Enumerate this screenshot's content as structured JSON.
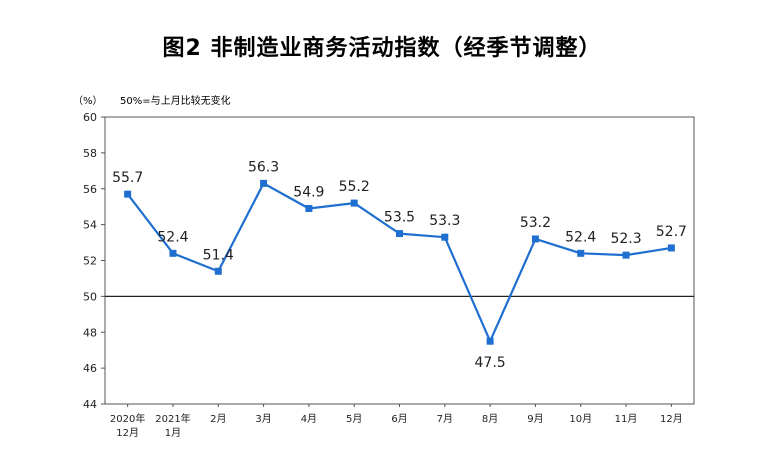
{
  "chart_data": {
    "type": "line",
    "title": "图2  非制造业商务活动指数（经季节调整）",
    "unit_label": "（%）",
    "note": "50%=与上月比较无变化",
    "categories": [
      [
        "2020年",
        "12月"
      ],
      [
        "2021年",
        "1月"
      ],
      [
        "2月"
      ],
      [
        "3月"
      ],
      [
        "4月"
      ],
      [
        "5月"
      ],
      [
        "6月"
      ],
      [
        "7月"
      ],
      [
        "8月"
      ],
      [
        "9月"
      ],
      [
        "10月"
      ],
      [
        "11月"
      ],
      [
        "12月"
      ]
    ],
    "values": [
      55.7,
      52.4,
      51.4,
      56.3,
      54.9,
      55.2,
      53.5,
      53.3,
      47.5,
      53.2,
      52.4,
      52.3,
      52.7
    ],
    "value_labels": [
      "55.7",
      "52.4",
      "51.4",
      "56.3",
      "54.9",
      "55.2",
      "53.5",
      "53.3",
      "47.5",
      "53.2",
      "52.4",
      "52.3",
      "52.7"
    ],
    "ylim": [
      44,
      60
    ],
    "yticks": [
      "44",
      "46",
      "48",
      "50",
      "52",
      "54",
      "56",
      "58",
      "60"
    ],
    "reference_line": 50,
    "line_color": "#1f6fd0",
    "grid": false,
    "legend": "none"
  }
}
